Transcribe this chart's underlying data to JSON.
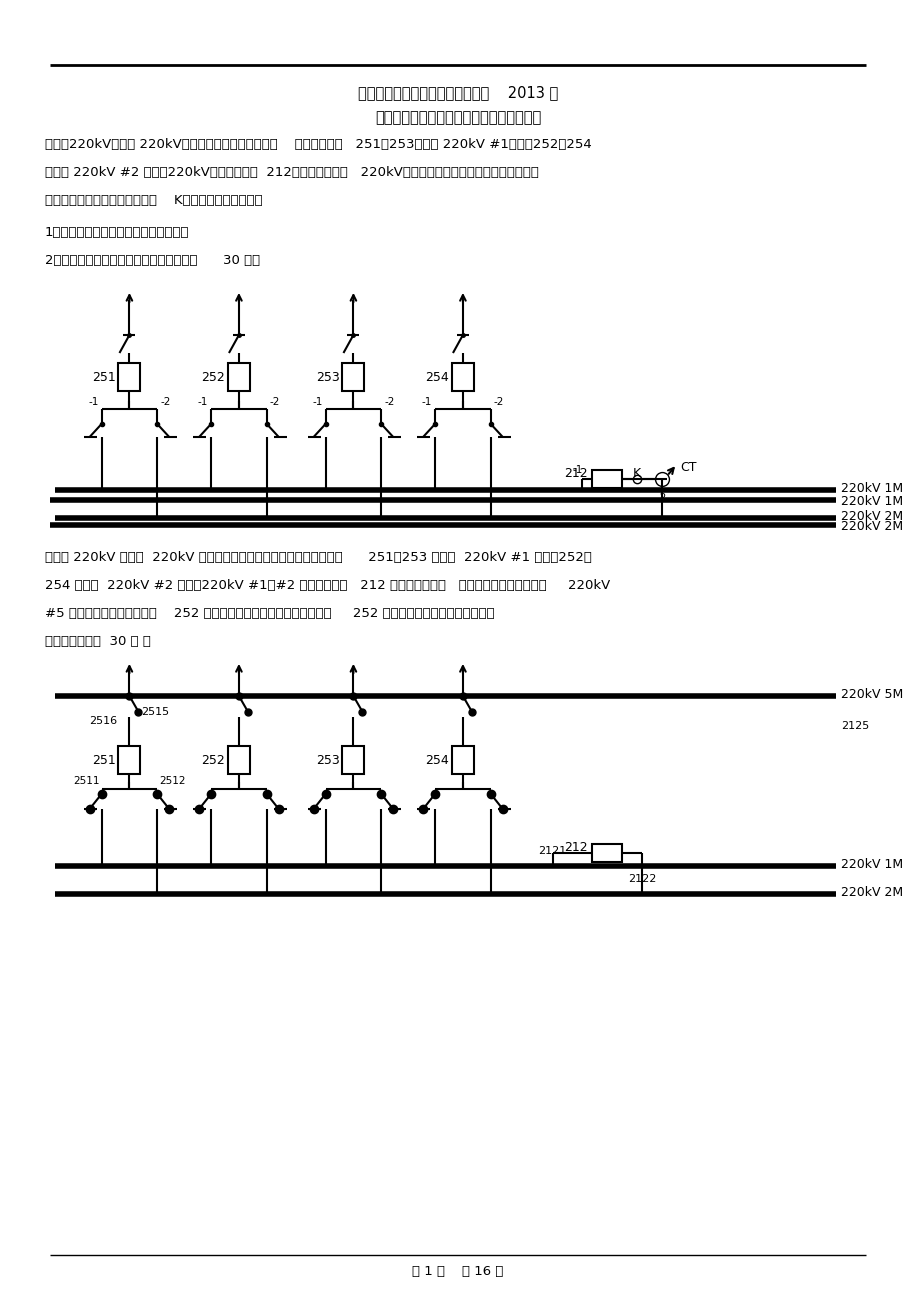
{
  "title_company": "内蒙古电力（集团）有限责任公司    2013 年",
  "title_sub": "《电力调度员》技师技能鉴定实际操作题目",
  "section1_line1": "一、某220kV变电站 220kV母线主接线图如下图所示。    运行方式为：   251、253开关上 220kV #1母线，252、254",
  "section1_line2": "开关上 220kV #2 母线，220kV母线通过母联  212开关并列运行，   220kV出线均为联络线。母线配置母差保护，",
  "section1_line3": "所有出线均在运行状态。故障点    K点如图所示，请回答：",
  "section1_q1": "1．分析保护动作情况及开关动作行为：",
  "section1_q2": "2．简述故障处理步骤及恢复送电过程。（      30 分）",
  "section2_line1": "二、某 220kV 变电站  220kV 母线主接线图如下图所示。运行方式为：      251、253 开关上  220kV #1 母线，252、",
  "section2_line2": "254 开关上  220kV #2 母线，220kV #1、#2 母线通过母联   212 开关并列运行，   所有出线均在运行状态，     220kV",
  "section2_line3": "#5 母线为冷备用状态。现在    252 开关操作箱有计划检修工作，需要将     252 开关转为冷备用状态，请写出详",
  "section2_line4": "细操作步骤。（  30 分 ）",
  "footer": "第 1 页    共 16 页",
  "bg_color": "#ffffff",
  "line_color": "#000000",
  "text_color": "#000000"
}
